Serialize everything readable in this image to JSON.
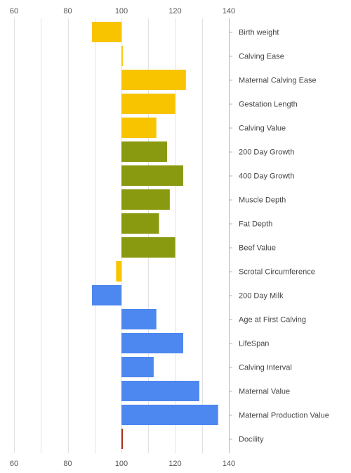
{
  "chart_data": {
    "type": "bar",
    "orientation": "horizontal",
    "xlim": [
      60,
      140
    ],
    "baseline": 100,
    "xticks": [
      60,
      80,
      100,
      120,
      140
    ],
    "grid": true,
    "categories": [
      "Birth weight",
      "Calving Ease",
      "Maternal Calving Ease",
      "Gestation Length",
      "Calving Value",
      "200 Day Growth",
      "400 Day Growth",
      "Muscle Depth",
      "Fat Depth",
      "Beef Value",
      "Scrotal Circumference",
      "200 Day Milk",
      "Age at First Calving",
      "LifeSpan",
      "Calving Interval",
      "Maternal Value",
      "Maternal Production Value",
      "Docility"
    ],
    "values": [
      89,
      100.5,
      124,
      120,
      113,
      117,
      123,
      118,
      114,
      120,
      98,
      89,
      113,
      123,
      112,
      129,
      136,
      100.5
    ],
    "colors": [
      "#f8c400",
      "#f8c400",
      "#f8c400",
      "#f8c400",
      "#f8c400",
      "#8a9a10",
      "#8a9a10",
      "#8a9a10",
      "#8a9a10",
      "#8a9a10",
      "#f8c400",
      "#4d87f0",
      "#4d87f0",
      "#4d87f0",
      "#4d87f0",
      "#4d87f0",
      "#4d87f0",
      "#a02010"
    ]
  }
}
